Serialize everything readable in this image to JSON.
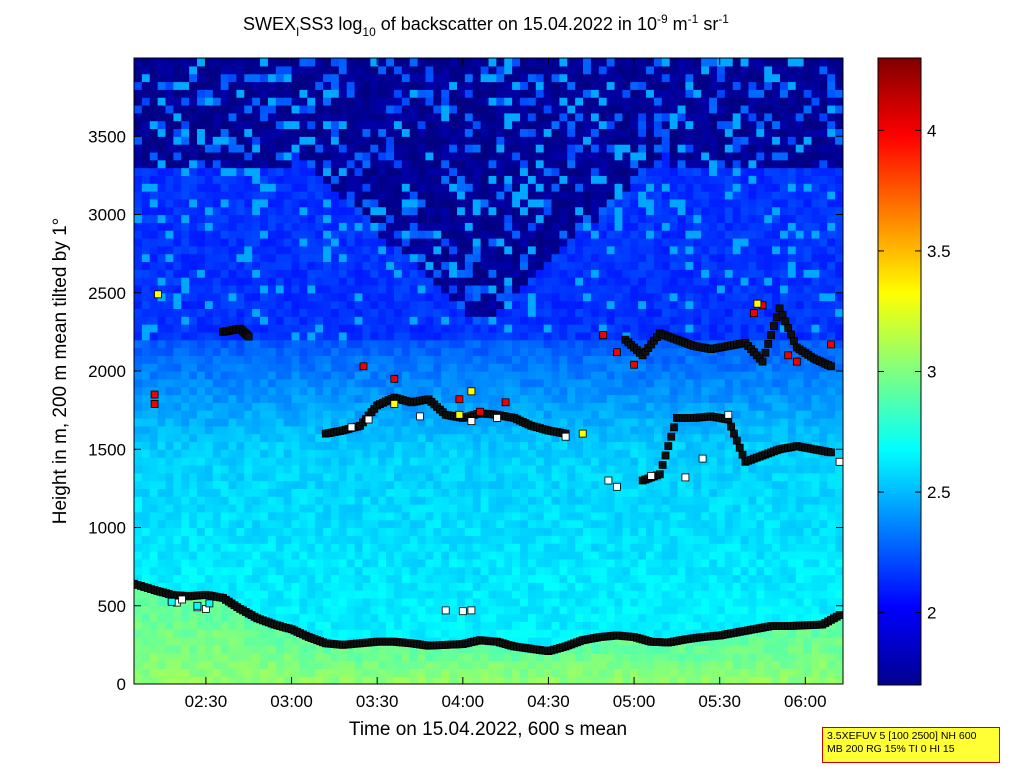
{
  "chart_data": {
    "type": "heatmap",
    "title": {
      "prefix": "SWEX",
      "prefix_sub": "I",
      "middle": "SS3 log",
      "log_sub": "10",
      "text": " of backscatter on 15.04.2022 in 10",
      "unit_exp1": "-9",
      "unit_mid": " m",
      "unit_exp2": "-1",
      "unit_end": " sr",
      "unit_exp3": "-1"
    },
    "xlabel": "Time on 15.04.2022, 600 s mean",
    "ylabel": "Height in m, 200 m mean tilted by 1°",
    "x_ticks": [
      "02:30",
      "03:00",
      "03:30",
      "04:00",
      "04:30",
      "05:00",
      "05:30",
      "06:00"
    ],
    "x_tick_hours": [
      2.5,
      3.0,
      3.5,
      4.0,
      4.5,
      5.0,
      5.5,
      6.0
    ],
    "xlim_hours": [
      2.08,
      6.22
    ],
    "y_ticks": [
      "0",
      "500",
      "1000",
      "1500",
      "2000",
      "2500",
      "3000",
      "3500"
    ],
    "y_tick_values": [
      0,
      500,
      1000,
      1500,
      2000,
      2500,
      3000,
      3500
    ],
    "ylim": [
      0,
      4000
    ],
    "colorbar": {
      "ticks": [
        "2",
        "2.5",
        "3",
        "3.5",
        "4"
      ],
      "tick_values": [
        2,
        2.5,
        3,
        3.5,
        4
      ],
      "range": [
        1.7,
        4.3
      ],
      "colormap": "jet"
    },
    "layers": {
      "ground_level": 2.9,
      "boundary_level": 2.65,
      "aerosol_level": 2.55,
      "free_tropo_level": 2.15,
      "clear_level": 1.75
    },
    "series": [
      {
        "marker": "black-square",
        "x_hours": [
          2.08,
          2.2,
          2.3,
          2.4,
          2.5,
          2.6,
          2.7,
          2.8,
          2.9,
          3.0,
          3.1,
          3.2,
          3.3,
          3.4,
          3.5,
          3.6,
          3.7,
          3.8,
          3.9,
          4.0,
          4.1,
          4.2,
          4.3,
          4.4,
          4.5,
          4.6,
          4.7,
          4.8,
          4.9,
          5.0,
          5.1,
          5.2,
          5.3,
          5.4,
          5.5,
          5.6,
          5.7,
          5.8,
          5.9,
          6.0,
          6.1,
          6.2
        ],
        "y": [
          640,
          600,
          570,
          560,
          570,
          550,
          480,
          420,
          380,
          350,
          300,
          260,
          250,
          260,
          270,
          270,
          260,
          245,
          250,
          255,
          280,
          270,
          240,
          225,
          210,
          240,
          280,
          300,
          310,
          300,
          270,
          265,
          285,
          300,
          310,
          330,
          350,
          370,
          370,
          375,
          380,
          440
        ]
      },
      {
        "marker": "white-square",
        "x_hours": [
          2.3,
          2.33,
          2.36,
          2.45,
          2.5,
          3.9,
          4.0,
          4.05
        ],
        "y": [
          530,
          520,
          540,
          490,
          480,
          470,
          465,
          470
        ]
      },
      {
        "marker": "cyan-square",
        "x_hours": [
          2.3,
          2.45,
          2.52
        ],
        "y": [
          525,
          500,
          515
        ]
      },
      {
        "marker": "black-square",
        "x_hours": [
          3.2,
          3.3,
          3.4,
          3.5,
          3.6,
          3.7,
          3.8,
          3.9,
          4.0,
          4.1,
          4.2,
          4.3,
          4.4,
          4.5,
          4.6
        ],
        "y": [
          1600,
          1620,
          1650,
          1780,
          1830,
          1800,
          1820,
          1720,
          1700,
          1730,
          1720,
          1700,
          1650,
          1620,
          1600
        ]
      },
      {
        "marker": "black-square",
        "x_hours": [
          5.05,
          5.15,
          5.25,
          5.35,
          5.45,
          5.55,
          5.65,
          5.75,
          5.85,
          5.95,
          6.05,
          6.15
        ],
        "y": [
          1300,
          1340,
          1700,
          1700,
          1710,
          1690,
          1420,
          1460,
          1500,
          1520,
          1500,
          1480
        ]
      },
      {
        "marker": "black-square",
        "x_hours": [
          4.95,
          5.05,
          5.15,
          5.25,
          5.35,
          5.45,
          5.55,
          5.65,
          5.75,
          5.85,
          5.95,
          6.05,
          6.15
        ],
        "y": [
          2200,
          2100,
          2240,
          2200,
          2160,
          2140,
          2160,
          2180,
          2060,
          2400,
          2150,
          2080,
          2030
        ]
      },
      {
        "marker": "black-square",
        "x_hours": [
          2.6,
          2.65,
          2.7,
          2.75
        ],
        "y": [
          2250,
          2260,
          2270,
          2220
        ]
      },
      {
        "marker": "white-square",
        "x_hours": [
          3.35,
          3.45,
          3.75,
          4.05,
          4.2,
          4.6,
          4.85,
          4.9,
          5.1,
          5.3,
          5.4,
          5.55,
          6.2
        ],
        "y": [
          1640,
          1690,
          1710,
          1680,
          1700,
          1580,
          1300,
          1260,
          1330,
          1320,
          1440,
          1720,
          1420
        ]
      },
      {
        "marker": "red-square",
        "x_hours": [
          2.2,
          2.2,
          3.42,
          3.6,
          3.98,
          4.1,
          4.25,
          4.82,
          4.9,
          5.0,
          5.7,
          5.75,
          5.9,
          5.95,
          6.15
        ],
        "y": [
          1850,
          1790,
          2030,
          1950,
          1820,
          1740,
          1800,
          2230,
          2120,
          2040,
          2370,
          2420,
          2100,
          2060,
          2170
        ]
      },
      {
        "marker": "yellow-square",
        "x_hours": [
          2.22,
          3.6,
          3.98,
          4.05,
          4.7,
          5.72
        ],
        "y": [
          2490,
          1790,
          1720,
          1870,
          1600,
          2430
        ]
      }
    ]
  },
  "info_box": {
    "line1": "3.5XEFUV 5 [100 2500] NH 600",
    "line2": "MB 200 RG 15% TI 0 HI 15",
    "background": "#ffff33",
    "border": "#cc0000"
  }
}
